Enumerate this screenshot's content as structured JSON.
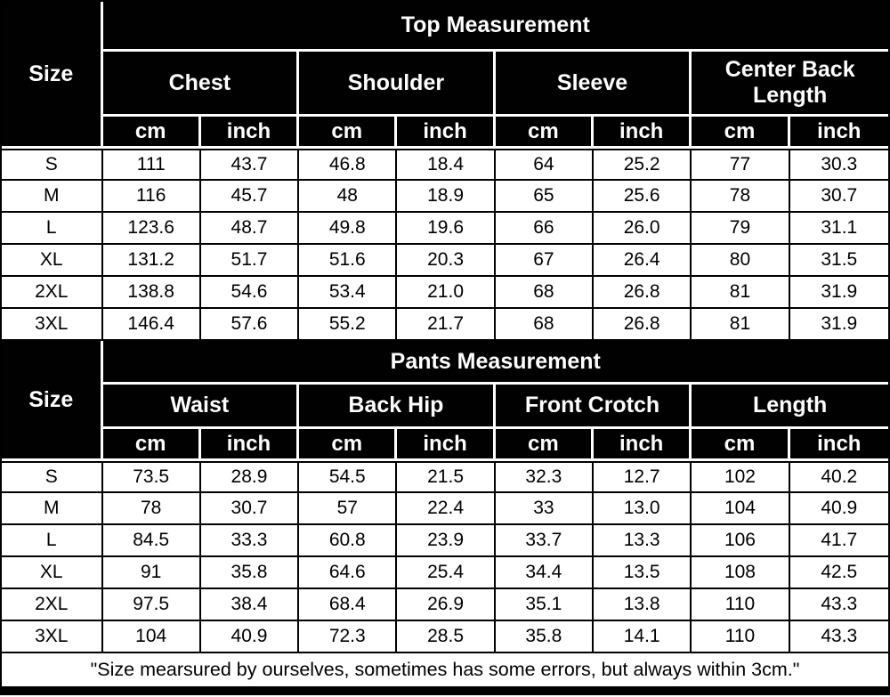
{
  "colors": {
    "header_bg": "#000000",
    "header_text": "#ffffff",
    "body_bg": "#ffffff",
    "body_text": "#000000"
  },
  "top_section": {
    "size_label": "Size",
    "title": "Top Measurement",
    "groups": [
      "Chest",
      "Shoulder",
      "Sleeve",
      "Center Back Length"
    ],
    "units": [
      "cm",
      "inch",
      "cm",
      "inch",
      "cm",
      "inch",
      "cm",
      "inch"
    ],
    "rows": [
      {
        "size": "S",
        "values": [
          "111",
          "43.7",
          "46.8",
          "18.4",
          "64",
          "25.2",
          "77",
          "30.3"
        ]
      },
      {
        "size": "M",
        "values": [
          "116",
          "45.7",
          "48",
          "18.9",
          "65",
          "25.6",
          "78",
          "30.7"
        ]
      },
      {
        "size": "L",
        "values": [
          "123.6",
          "48.7",
          "49.8",
          "19.6",
          "66",
          "26.0",
          "79",
          "31.1"
        ]
      },
      {
        "size": "XL",
        "values": [
          "131.2",
          "51.7",
          "51.6",
          "20.3",
          "67",
          "26.4",
          "80",
          "31.5"
        ]
      },
      {
        "size": "2XL",
        "values": [
          "138.8",
          "54.6",
          "53.4",
          "21.0",
          "68",
          "26.8",
          "81",
          "31.9"
        ]
      },
      {
        "size": "3XL",
        "values": [
          "146.4",
          "57.6",
          "55.2",
          "21.7",
          "68",
          "26.8",
          "81",
          "31.9"
        ]
      }
    ]
  },
  "pants_section": {
    "size_label": "Size",
    "title": "Pants Measurement",
    "groups": [
      "Waist",
      "Back Hip",
      "Front Crotch",
      "Length"
    ],
    "units": [
      "cm",
      "inch",
      "cm",
      "inch",
      "cm",
      "inch",
      "cm",
      "inch"
    ],
    "rows": [
      {
        "size": "S",
        "values": [
          "73.5",
          "28.9",
          "54.5",
          "21.5",
          "32.3",
          "12.7",
          "102",
          "40.2"
        ]
      },
      {
        "size": "M",
        "values": [
          "78",
          "30.7",
          "57",
          "22.4",
          "33",
          "13.0",
          "104",
          "40.9"
        ]
      },
      {
        "size": "L",
        "values": [
          "84.5",
          "33.3",
          "60.8",
          "23.9",
          "33.7",
          "13.3",
          "106",
          "41.7"
        ]
      },
      {
        "size": "XL",
        "values": [
          "91",
          "35.8",
          "64.6",
          "25.4",
          "34.4",
          "13.5",
          "108",
          "42.5"
        ]
      },
      {
        "size": "2XL",
        "values": [
          "97.5",
          "38.4",
          "68.4",
          "26.9",
          "35.1",
          "13.8",
          "110",
          "43.3"
        ]
      },
      {
        "size": "3XL",
        "values": [
          "104",
          "40.9",
          "72.3",
          "28.5",
          "35.8",
          "14.1",
          "110",
          "43.3"
        ]
      }
    ]
  },
  "footer": {
    "note": "\"Size mearsured by ourselves, sometimes has some errors, but always within 3cm.\""
  },
  "chart_data": [
    {
      "type": "table",
      "title": "Top Measurement",
      "columns": [
        "Size",
        "Chest (cm)",
        "Chest (inch)",
        "Shoulder (cm)",
        "Shoulder (inch)",
        "Sleeve (cm)",
        "Sleeve (inch)",
        "Center Back Length (cm)",
        "Center Back Length (inch)"
      ],
      "rows": [
        [
          "S",
          111,
          43.7,
          46.8,
          18.4,
          64,
          25.2,
          77,
          30.3
        ],
        [
          "M",
          116,
          45.7,
          48,
          18.9,
          65,
          25.6,
          78,
          30.7
        ],
        [
          "L",
          123.6,
          48.7,
          49.8,
          19.6,
          66,
          26.0,
          79,
          31.1
        ],
        [
          "XL",
          131.2,
          51.7,
          51.6,
          20.3,
          67,
          26.4,
          80,
          31.5
        ],
        [
          "2XL",
          138.8,
          54.6,
          53.4,
          21.0,
          68,
          26.8,
          81,
          31.9
        ],
        [
          "3XL",
          146.4,
          57.6,
          55.2,
          21.7,
          68,
          26.8,
          81,
          31.9
        ]
      ]
    },
    {
      "type": "table",
      "title": "Pants Measurement",
      "columns": [
        "Size",
        "Waist (cm)",
        "Waist (inch)",
        "Back Hip (cm)",
        "Back Hip (inch)",
        "Front Crotch (cm)",
        "Front Crotch (inch)",
        "Length (cm)",
        "Length (inch)"
      ],
      "rows": [
        [
          "S",
          73.5,
          28.9,
          54.5,
          21.5,
          32.3,
          12.7,
          102,
          40.2
        ],
        [
          "M",
          78,
          30.7,
          57,
          22.4,
          33,
          13.0,
          104,
          40.9
        ],
        [
          "L",
          84.5,
          33.3,
          60.8,
          23.9,
          33.7,
          13.3,
          106,
          41.7
        ],
        [
          "XL",
          91,
          35.8,
          64.6,
          25.4,
          34.4,
          13.5,
          108,
          42.5
        ],
        [
          "2XL",
          97.5,
          38.4,
          68.4,
          26.9,
          35.1,
          13.8,
          110,
          43.3
        ],
        [
          "3XL",
          104,
          40.9,
          72.3,
          28.5,
          35.8,
          14.1,
          110,
          43.3
        ]
      ]
    }
  ]
}
